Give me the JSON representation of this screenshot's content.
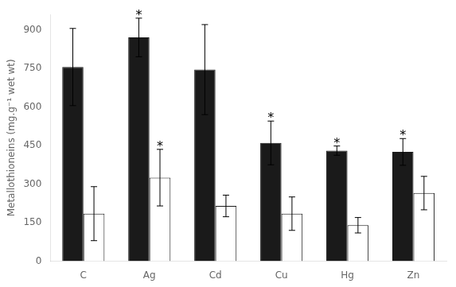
{
  "chart_data": {
    "type": "bar",
    "categories": [
      "C",
      "Ag",
      "Cd",
      "Cu",
      "Hg",
      "Zn"
    ],
    "series": [
      {
        "color": "#1a1a1a",
        "values": [
          755,
          870,
          745,
          460,
          430,
          425
        ],
        "errors": [
          150,
          75,
          175,
          85,
          18,
          52
        ]
      },
      {
        "color": "#ffffff",
        "values": [
          185,
          325,
          215,
          185,
          140,
          265
        ],
        "errors": [
          105,
          110,
          42,
          65,
          30,
          65
        ]
      }
    ],
    "edge_color": "#1a1a1a",
    "annotations": [
      {
        "text": "*",
        "series": 0,
        "category": "Ag"
      },
      {
        "text": "*",
        "series": 0,
        "category": "Cu"
      },
      {
        "text": "*",
        "series": 0,
        "category": "Hg"
      },
      {
        "text": "*",
        "series": 0,
        "category": "Zn"
      },
      {
        "text": "*",
        "series": 1,
        "category": "Ag"
      }
    ],
    "ylabel": "Metallothioneins (mg.g⁻¹ wet wt)",
    "ylim": [
      0,
      960
    ],
    "yticks": [
      0,
      150,
      300,
      450,
      600,
      750,
      900
    ],
    "grid": false
  }
}
